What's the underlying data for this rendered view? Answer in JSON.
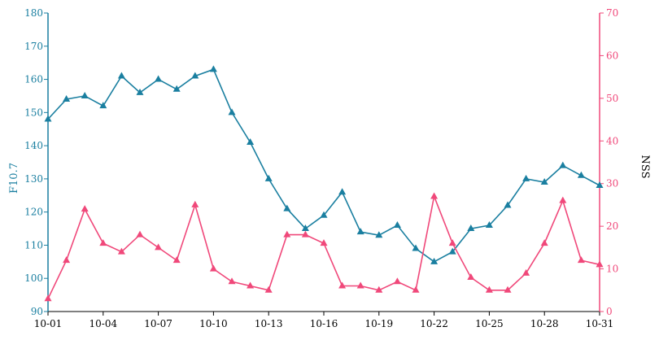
{
  "chart_data": {
    "type": "line",
    "x": [
      "10-01",
      "10-02",
      "10-03",
      "10-04",
      "10-05",
      "10-06",
      "10-07",
      "10-08",
      "10-09",
      "10-10",
      "10-11",
      "10-12",
      "10-13",
      "10-14",
      "10-15",
      "10-16",
      "10-17",
      "10-18",
      "10-19",
      "10-20",
      "10-21",
      "10-22",
      "10-23",
      "10-24",
      "10-25",
      "10-26",
      "10-27",
      "10-28",
      "10-29",
      "10-30",
      "10-31"
    ],
    "x_tick_labels": [
      "10-01",
      "10-04",
      "10-07",
      "10-10",
      "10-13",
      "10-16",
      "10-19",
      "10-22",
      "10-25",
      "10-28",
      "10-31"
    ],
    "series": [
      {
        "name": "F10.7",
        "axis": "left",
        "color": "#1a7fa0",
        "values": [
          148,
          154,
          155,
          152,
          161,
          156,
          160,
          157,
          161,
          163,
          150,
          141,
          130,
          121,
          115,
          119,
          126,
          114,
          113,
          116,
          109,
          105,
          108,
          115,
          116,
          122,
          130,
          129,
          134,
          131,
          128
        ]
      },
      {
        "name": "NSS",
        "axis": "right",
        "color": "#f0487a",
        "values": [
          3,
          12,
          24,
          16,
          14,
          18,
          15,
          12,
          25,
          10,
          7,
          6,
          5,
          18,
          18,
          16,
          6,
          6,
          5,
          7,
          5,
          27,
          16,
          8,
          5,
          5,
          9,
          16,
          26,
          12,
          11
        ]
      }
    ],
    "ylabel_left": "F10.7",
    "ylabel_right": "NSS",
    "ylim_left": [
      90,
      180
    ],
    "ylim_right": [
      0,
      70
    ],
    "yticks_left": [
      90,
      100,
      110,
      120,
      130,
      140,
      150,
      160,
      170,
      180
    ],
    "yticks_right": [
      0,
      10,
      20,
      30,
      40,
      50,
      60,
      70
    ],
    "grid": false
  }
}
